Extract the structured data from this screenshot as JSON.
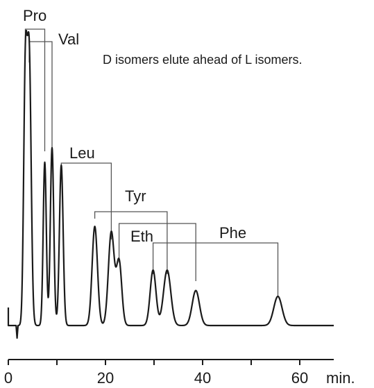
{
  "chart_data": {
    "type": "line",
    "title": "",
    "xlabel": "",
    "ylabel": "",
    "annotation": "D isomers elute ahead of L isomers.",
    "xlim": [
      0,
      65
    ],
    "x_ticks": [
      {
        "value": 0,
        "label": "0"
      },
      {
        "value": 20,
        "label": "20"
      },
      {
        "value": 40,
        "label": "40"
      },
      {
        "value": 60,
        "label": "60"
      }
    ],
    "x_unit_label": "min.",
    "peaks": [
      {
        "rt": 3.5,
        "height": 0.84,
        "width": 0.35
      },
      {
        "rt": 4.3,
        "height": 0.92,
        "width": 0.4
      },
      {
        "rt": 7.5,
        "height": 0.56,
        "width": 0.32
      },
      {
        "rt": 9.0,
        "height": 0.61,
        "width": 0.35
      },
      {
        "rt": 10.9,
        "height": 0.55,
        "width": 0.38
      },
      {
        "rt": 17.8,
        "height": 0.34,
        "width": 0.55
      },
      {
        "rt": 21.2,
        "height": 0.32,
        "width": 0.6
      },
      {
        "rt": 22.8,
        "height": 0.22,
        "width": 0.55
      },
      {
        "rt": 29.8,
        "height": 0.19,
        "width": 0.6
      },
      {
        "rt": 32.7,
        "height": 0.19,
        "width": 0.75
      },
      {
        "rt": 38.6,
        "height": 0.12,
        "width": 0.75
      },
      {
        "rt": 55.5,
        "height": 0.1,
        "width": 0.85
      }
    ],
    "compound_labels": [
      {
        "name": "Pro",
        "d_rt": 3.5,
        "l_rt": 7.5
      },
      {
        "name": "Val",
        "d_rt": 4.3,
        "l_rt": 9.0
      },
      {
        "name": "Leu",
        "d_rt": 10.9,
        "l_rt": 21.2
      },
      {
        "name": "Tyr",
        "d_rt": 17.8,
        "l_rt": 32.7
      },
      {
        "name": "Eth",
        "d_rt": 22.8,
        "l_rt": 38.6
      },
      {
        "name": "Phe",
        "d_rt": 29.8,
        "l_rt": 55.5
      }
    ]
  }
}
